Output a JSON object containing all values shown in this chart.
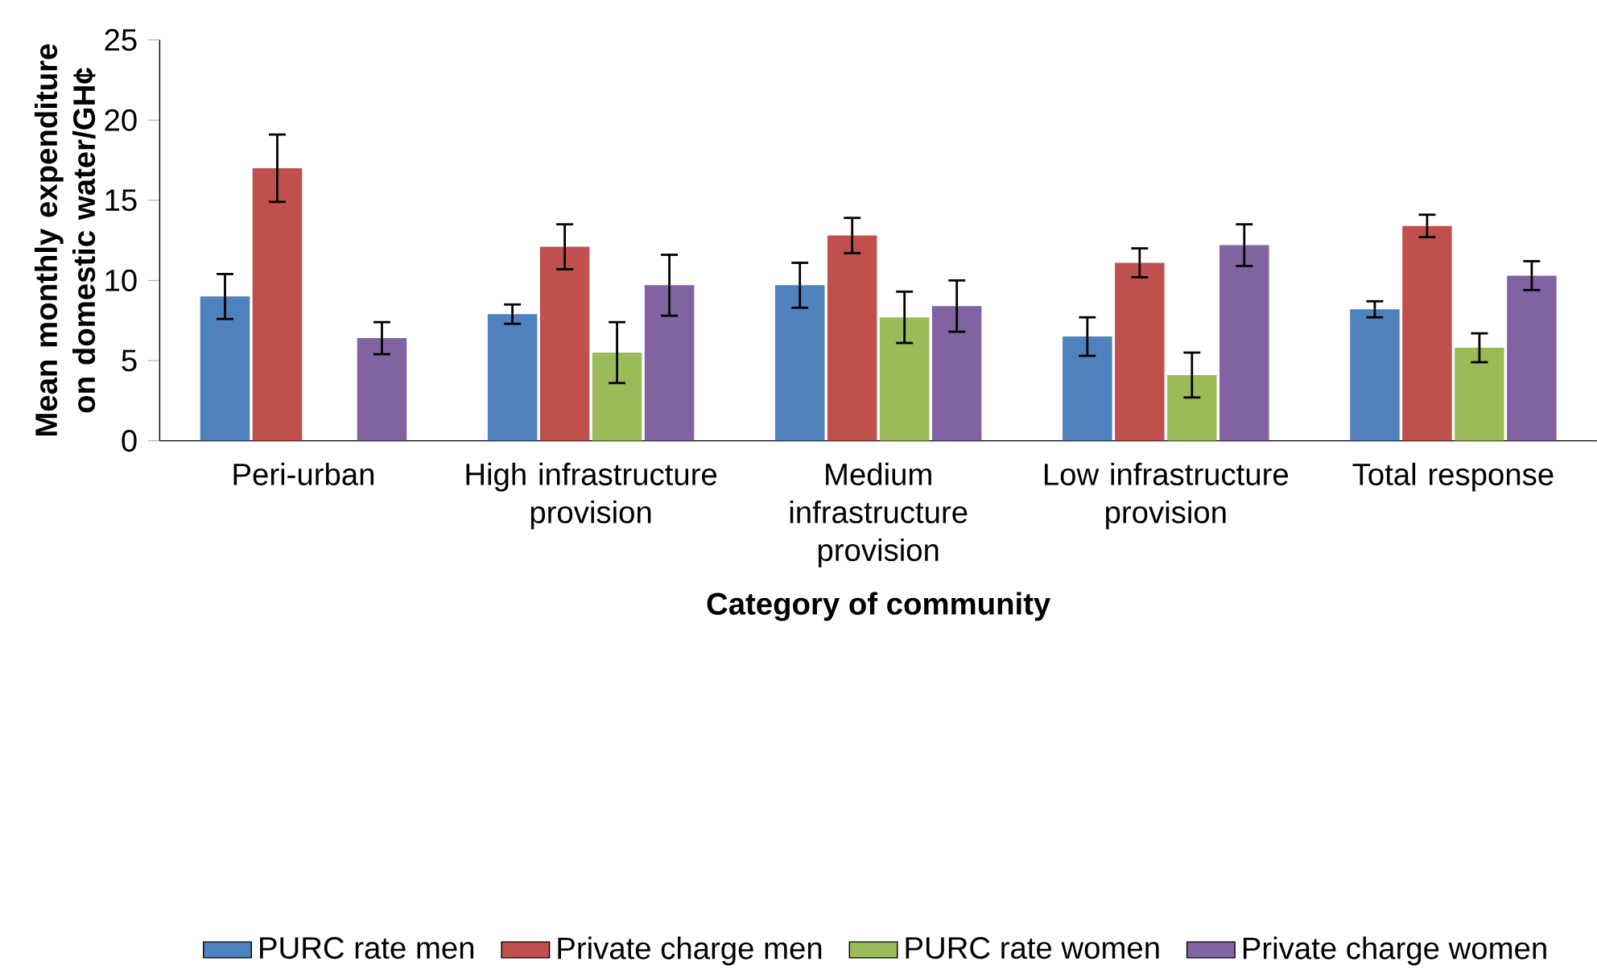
{
  "chart_data": {
    "type": "bar",
    "xlabel": "Category of community",
    "ylabel": "Mean monthly expenditure on domestic water/GH¢",
    "categories": [
      "Peri-urban",
      "High infrastructure provision",
      "Medium infrastructure provision",
      "Low infrastructure provision",
      "Total response"
    ],
    "series": [
      {
        "name": "PURC rate men",
        "color": "#4f81bd",
        "values": [
          9.0,
          7.9,
          9.7,
          6.5,
          8.2
        ],
        "errors": [
          1.4,
          0.6,
          1.4,
          1.2,
          0.5
        ]
      },
      {
        "name": "Private charge men",
        "color": "#c0504d",
        "values": [
          17.0,
          12.1,
          12.8,
          11.1,
          13.4
        ],
        "errors": [
          2.1,
          1.4,
          1.1,
          0.9,
          0.7
        ]
      },
      {
        "name": "PURC rate women",
        "color": "#9bbb59",
        "values": [
          null,
          5.5,
          7.7,
          4.1,
          5.8
        ],
        "errors": [
          null,
          1.9,
          1.6,
          1.4,
          0.9
        ]
      },
      {
        "name": "Private charge women",
        "color": "#8064a2",
        "values": [
          6.4,
          9.7,
          8.4,
          12.2,
          10.3
        ],
        "errors": [
          1.0,
          1.9,
          1.6,
          1.3,
          0.9
        ]
      }
    ],
    "ylim": [
      0,
      25
    ],
    "yticks": [
      0,
      5,
      10,
      15,
      20,
      25
    ],
    "grid": false,
    "legend": "bottom"
  }
}
